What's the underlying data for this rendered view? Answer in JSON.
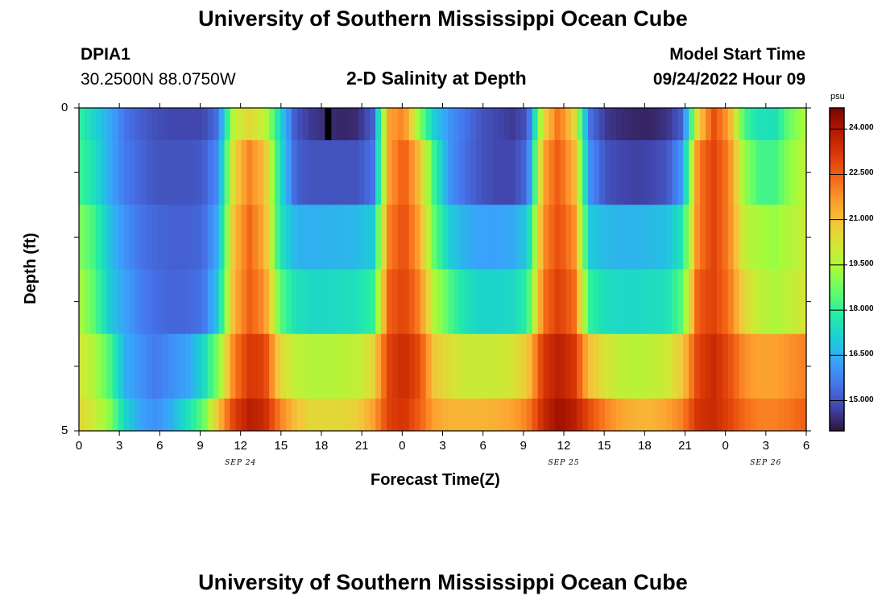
{
  "page": {
    "title_top": "University of Southern Mississippi Ocean Cube",
    "title_bottom": "University of Southern Mississippi Ocean Cube",
    "station_id": "DPIA1",
    "station_coords": "30.2500N  88.0750W",
    "model_start_label": "Model Start Time",
    "model_start_value": "09/24/2022 Hour 09"
  },
  "chart_data": {
    "type": "heatmap",
    "title": "2-D Salinity at Depth",
    "xlabel": "Forecast Time(Z)",
    "ylabel": "Depth (ft)",
    "x_tick_labels": [
      "0",
      "3",
      "6",
      "9",
      "12",
      "15",
      "18",
      "21",
      "0",
      "3",
      "6",
      "9",
      "12",
      "15",
      "18",
      "21",
      "0",
      "3",
      "6"
    ],
    "date_labels": [
      "SEP 24",
      "SEP 25",
      "SEP 26"
    ],
    "y_tick_labels": [
      "0",
      "5"
    ],
    "y_range": [
      0,
      5
    ],
    "x_range_hours": [
      0,
      54
    ],
    "colorbar": {
      "unit": "psu",
      "range": [
        14.0,
        24.7
      ],
      "tick_labels": [
        "24.000",
        "22.500",
        "21.000",
        "19.500",
        "18.000",
        "16.500",
        "15.000"
      ],
      "tick_values": [
        24.0,
        22.5,
        21.0,
        19.5,
        18.0,
        16.5,
        15.0
      ],
      "colors": [
        "#30123b",
        "#4145ab",
        "#4675ed",
        "#39a2fc",
        "#1bcfd4",
        "#24eca6",
        "#61fc6c",
        "#a4fc3b",
        "#d1e834",
        "#f3c63a",
        "#fe9b2d",
        "#f36315",
        "#d93806",
        "#b11901",
        "#7a0402"
      ]
    },
    "depth_layers": [
      {
        "depth_range": "0-0.5",
        "salinity": [
          18.0,
          17.2,
          16.4,
          15.5,
          15.2,
          14.9,
          14.8,
          14.8,
          14.8,
          15.5,
          19.8,
          20.5,
          19.8,
          17.3,
          15.0,
          14.6,
          14.4,
          14.3,
          14.4,
          15.2,
          21.5,
          22.0,
          19.0,
          17.0,
          16.0,
          15.5,
          15.0,
          14.8,
          14.6,
          15.0,
          20.5,
          22.3,
          20.5,
          15.5,
          14.6,
          14.4,
          14.3,
          14.3,
          14.5,
          15.2,
          20.5,
          22.8,
          21.5,
          18.2,
          17.5,
          17.5,
          18.8,
          19.5
        ]
      },
      {
        "depth_range": "0.5-1.5",
        "salinity": [
          18.2,
          17.5,
          16.4,
          15.6,
          15.3,
          15.0,
          15.0,
          15.0,
          15.1,
          16.0,
          20.5,
          22.0,
          21.0,
          17.5,
          15.2,
          15.0,
          15.0,
          15.0,
          15.0,
          15.5,
          21.5,
          22.6,
          21.0,
          18.0,
          16.0,
          15.4,
          15.0,
          14.8,
          14.8,
          15.4,
          21.5,
          22.6,
          21.2,
          16.0,
          15.0,
          14.8,
          14.7,
          14.8,
          15.0,
          16.2,
          22.0,
          23.0,
          22.0,
          19.2,
          18.2,
          18.2,
          19.2,
          19.8
        ]
      },
      {
        "depth_range": "1.5-2.5",
        "salinity": [
          19.0,
          18.2,
          16.8,
          16.0,
          15.5,
          15.3,
          15.2,
          15.2,
          15.3,
          16.5,
          21.0,
          22.4,
          21.3,
          17.6,
          16.6,
          16.5,
          16.6,
          16.6,
          16.7,
          17.0,
          22.0,
          22.8,
          21.5,
          18.5,
          17.0,
          16.5,
          16.3,
          16.3,
          16.4,
          17.0,
          21.8,
          22.8,
          21.8,
          17.0,
          16.7,
          16.6,
          16.6,
          16.7,
          16.8,
          17.6,
          22.0,
          23.0,
          22.0,
          19.8,
          19.4,
          19.2,
          19.6,
          20.0
        ]
      },
      {
        "depth_range": "2.5-3.5",
        "salinity": [
          19.5,
          18.5,
          17.0,
          16.3,
          15.7,
          15.4,
          15.3,
          15.3,
          15.5,
          17.0,
          21.2,
          22.5,
          21.8,
          18.5,
          17.5,
          17.3,
          17.3,
          17.4,
          17.5,
          18.0,
          22.5,
          23.0,
          22.0,
          19.5,
          18.3,
          17.5,
          17.2,
          17.2,
          17.3,
          18.0,
          22.2,
          23.1,
          22.3,
          18.0,
          17.4,
          17.3,
          17.3,
          17.4,
          17.5,
          18.5,
          22.6,
          23.0,
          22.2,
          20.5,
          19.8,
          19.5,
          19.8,
          20.3
        ]
      },
      {
        "depth_range": "3.5-4.5",
        "salinity": [
          20.2,
          19.5,
          18.3,
          16.5,
          16.0,
          15.6,
          16.0,
          16.3,
          17.2,
          19.0,
          22.0,
          23.2,
          23.0,
          20.5,
          19.8,
          19.6,
          19.6,
          19.7,
          19.8,
          20.5,
          23.0,
          23.5,
          22.8,
          20.8,
          20.3,
          20.0,
          20.0,
          20.0,
          20.2,
          20.8,
          23.2,
          23.8,
          23.2,
          21.0,
          20.2,
          19.8,
          19.7,
          19.8,
          20.0,
          20.8,
          23.0,
          23.5,
          22.8,
          21.8,
          21.5,
          21.5,
          21.8,
          22.0
        ]
      },
      {
        "depth_range": "4.5-5",
        "salinity": [
          20.5,
          20.0,
          19.0,
          17.2,
          16.3,
          16.0,
          16.5,
          17.5,
          18.5,
          21.0,
          23.0,
          23.8,
          23.5,
          22.0,
          21.0,
          20.5,
          20.5,
          20.5,
          20.7,
          21.5,
          23.0,
          23.3,
          22.5,
          21.5,
          21.2,
          21.2,
          21.2,
          21.3,
          21.5,
          22.0,
          23.5,
          24.2,
          23.8,
          22.8,
          22.0,
          21.5,
          21.2,
          21.2,
          21.5,
          22.0,
          23.3,
          23.5,
          23.0,
          22.3,
          22.0,
          22.0,
          22.2,
          22.5
        ]
      }
    ]
  }
}
